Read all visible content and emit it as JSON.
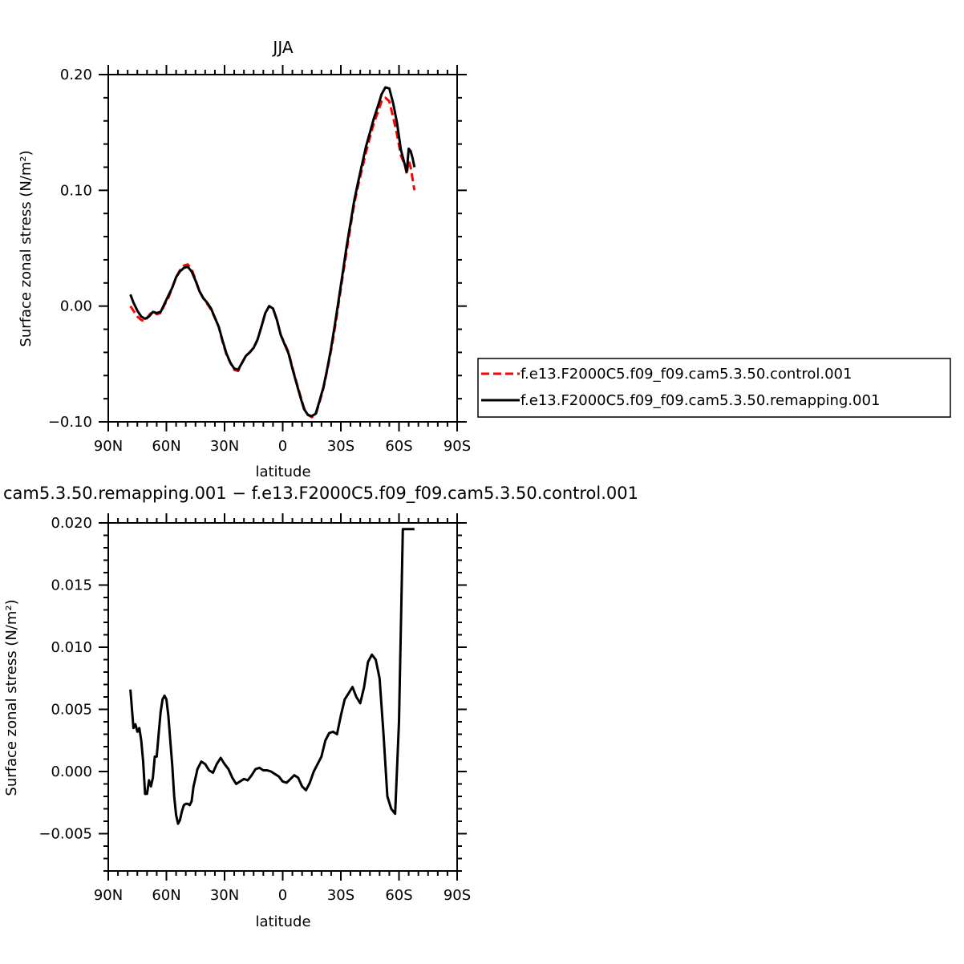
{
  "chart_data": [
    {
      "type": "line",
      "title": "JJA",
      "xlabel": "latitude",
      "ylabel": "Surface zonal stress (N/m²)",
      "xlim": [
        90,
        -90
      ],
      "ylim": [
        -0.1,
        0.2
      ],
      "xticks": [
        {
          "value": 90,
          "label": "90N"
        },
        {
          "value": 60,
          "label": "60N"
        },
        {
          "value": 30,
          "label": "30N"
        },
        {
          "value": 0,
          "label": "0"
        },
        {
          "value": -30,
          "label": "30S"
        },
        {
          "value": -60,
          "label": "60S"
        },
        {
          "value": -90,
          "label": "90S"
        }
      ],
      "yticks": [
        {
          "value": 0.2,
          "label": "0.20"
        },
        {
          "value": 0.1,
          "label": "0.10"
        },
        {
          "value": 0.0,
          "label": "0.00"
        },
        {
          "value": -0.1,
          "label": "−0.10"
        }
      ],
      "legend_position": "right",
      "series": [
        {
          "name": "f.e13.F2000C5.f09_f09.cam5.3.50.control.001",
          "color": "#ff0000",
          "dash": "dashed",
          "x": [
            78.6,
            77,
            75,
            73,
            71,
            69,
            67,
            65,
            63,
            61,
            59,
            57,
            55,
            53,
            51,
            49,
            47,
            45,
            43,
            41,
            39,
            37,
            35,
            33,
            31,
            29,
            27,
            25,
            23,
            21,
            19,
            17,
            15,
            13,
            11,
            9,
            7,
            5,
            3,
            1,
            -1,
            -3,
            -5,
            -7,
            -9,
            -11,
            -13,
            -15,
            -17,
            -19,
            -21,
            -23,
            -25,
            -27,
            -29,
            -31,
            -33,
            -35,
            -37,
            -39,
            -41,
            -43,
            -45,
            -47,
            -49,
            -51,
            -53,
            -55,
            -57,
            -59,
            -61,
            -63,
            -64,
            -65,
            -66,
            -67,
            -68
          ],
          "y": [
            0.0,
            -0.004,
            -0.009,
            -0.012,
            -0.013,
            -0.008,
            -0.004,
            -0.007,
            -0.006,
            0.001,
            0.007,
            0.016,
            0.025,
            0.031,
            0.035,
            0.036,
            0.032,
            0.023,
            0.013,
            0.007,
            0.002,
            -0.003,
            -0.01,
            -0.018,
            -0.031,
            -0.042,
            -0.049,
            -0.055,
            -0.056,
            -0.049,
            -0.043,
            -0.04,
            -0.036,
            -0.029,
            -0.018,
            -0.006,
            0.0,
            -0.002,
            -0.012,
            -0.025,
            -0.032,
            -0.04,
            -0.053,
            -0.065,
            -0.077,
            -0.088,
            -0.094,
            -0.096,
            -0.094,
            -0.083,
            -0.071,
            -0.055,
            -0.038,
            -0.018,
            0.004,
            0.026,
            0.048,
            0.069,
            0.089,
            0.105,
            0.119,
            0.133,
            0.146,
            0.158,
            0.167,
            0.177,
            0.18,
            0.177,
            0.163,
            0.148,
            0.13,
            0.122,
            0.114,
            0.126,
            0.12,
            0.11,
            0.1
          ]
        },
        {
          "name": "f.e13.F2000C5.f09_f09.cam5.3.50.remapping.001",
          "color": "#000000",
          "dash": "solid",
          "x": [
            78.6,
            77,
            75,
            73,
            71,
            69,
            67,
            65,
            63,
            61,
            59,
            57,
            55,
            53,
            51,
            49,
            47,
            45,
            43,
            41,
            39,
            37,
            35,
            33,
            31,
            29,
            27,
            25,
            23,
            21,
            19,
            17,
            15,
            13,
            11,
            9,
            7,
            5,
            3,
            1,
            -1,
            -3,
            -5,
            -7,
            -9,
            -11,
            -13,
            -15,
            -17,
            -19,
            -21,
            -23,
            -25,
            -27,
            -29,
            -31,
            -33,
            -35,
            -37,
            -39,
            -41,
            -43,
            -45,
            -47,
            -49,
            -51,
            -53,
            -55,
            -57,
            -59,
            -61,
            -63,
            -64,
            -65,
            -66,
            -67,
            -68
          ],
          "y": [
            0.01,
            0.003,
            -0.004,
            -0.009,
            -0.011,
            -0.009,
            -0.005,
            -0.006,
            -0.005,
            0.002,
            0.009,
            0.016,
            0.025,
            0.03,
            0.033,
            0.034,
            0.03,
            0.022,
            0.013,
            0.007,
            0.003,
            -0.002,
            -0.01,
            -0.018,
            -0.03,
            -0.041,
            -0.049,
            -0.054,
            -0.055,
            -0.049,
            -0.043,
            -0.04,
            -0.036,
            -0.029,
            -0.018,
            -0.006,
            0.0,
            -0.002,
            -0.012,
            -0.025,
            -0.033,
            -0.041,
            -0.054,
            -0.066,
            -0.078,
            -0.089,
            -0.094,
            -0.095,
            -0.093,
            -0.082,
            -0.07,
            -0.054,
            -0.036,
            -0.015,
            0.007,
            0.029,
            0.052,
            0.072,
            0.092,
            0.108,
            0.123,
            0.138,
            0.15,
            0.162,
            0.172,
            0.183,
            0.189,
            0.188,
            0.175,
            0.158,
            0.135,
            0.122,
            0.116,
            0.136,
            0.134,
            0.128,
            0.12
          ]
        }
      ]
    },
    {
      "type": "line",
      "title": "cam5.3.50.remapping.001 − f.e13.F2000C5.f09_f09.cam5.3.50.control.001",
      "xlabel": "latitude",
      "ylabel": "Surface zonal stress (N/m²)",
      "xlim": [
        90,
        -90
      ],
      "ylim": [
        -0.008,
        0.02
      ],
      "xticks": [
        {
          "value": 90,
          "label": "90N"
        },
        {
          "value": 60,
          "label": "60N"
        },
        {
          "value": 30,
          "label": "30N"
        },
        {
          "value": 0,
          "label": "0"
        },
        {
          "value": -30,
          "label": "30S"
        },
        {
          "value": -60,
          "label": "60S"
        },
        {
          "value": -90,
          "label": "90S"
        }
      ],
      "yticks": [
        {
          "value": 0.02,
          "label": "0.020"
        },
        {
          "value": 0.015,
          "label": "0.015"
        },
        {
          "value": 0.01,
          "label": "0.010"
        },
        {
          "value": 0.005,
          "label": "0.005"
        },
        {
          "value": 0.0,
          "label": "0.000"
        },
        {
          "value": -0.005,
          "label": "−0.005"
        }
      ],
      "series": [
        {
          "color": "#000000",
          "dash": "solid",
          "x": [
            78.6,
            77,
            76,
            75,
            74,
            73,
            72,
            71,
            70,
            69,
            68,
            67,
            66,
            65,
            64,
            63,
            62,
            61,
            60,
            59,
            58,
            57,
            56,
            55,
            54,
            53,
            52,
            51,
            50,
            49,
            48,
            47,
            46,
            45,
            44,
            43,
            42,
            40,
            38,
            36,
            34,
            32,
            30,
            28,
            26,
            24,
            22,
            20,
            18,
            16,
            14,
            12,
            10,
            8,
            6,
            4,
            2,
            0,
            -2,
            -4,
            -6,
            -8,
            -10,
            -12,
            -14,
            -16,
            -18,
            -20,
            -22,
            -24,
            -26,
            -28,
            -30,
            -32,
            -34,
            -36,
            -38,
            -40,
            -42,
            -44,
            -46,
            -48,
            -50,
            -52,
            -54,
            -56,
            -58,
            -60,
            -62,
            -63,
            -64,
            -65,
            -66,
            -67,
            -68
          ],
          "y": [
            0.0066,
            0.0035,
            0.0038,
            0.0032,
            0.0035,
            0.0025,
            0.0008,
            -0.0018,
            -0.0018,
            -0.0007,
            -0.0012,
            -0.0005,
            0.0012,
            0.0012,
            0.003,
            0.0048,
            0.0058,
            0.0061,
            0.0058,
            0.0045,
            0.0025,
            0.0005,
            -0.002,
            -0.0035,
            -0.0042,
            -0.0039,
            -0.0032,
            -0.0027,
            -0.0026,
            -0.0026,
            -0.0027,
            -0.0024,
            -0.0012,
            -0.0005,
            0.0002,
            0.0005,
            0.0008,
            0.0006,
            0.0001,
            -0.0001,
            0.0006,
            0.0011,
            0.0006,
            0.0002,
            -0.0005,
            -0.001,
            -0.0008,
            -0.0006,
            -0.0007,
            -0.0003,
            0.0002,
            0.0003,
            0.0001,
            0.0001,
            0.0,
            -0.0002,
            -0.0004,
            -0.0008,
            -0.0009,
            -0.0006,
            -0.0003,
            -0.0005,
            -0.0012,
            -0.0015,
            -0.0009,
            0.0,
            0.0006,
            0.0012,
            0.0025,
            0.0031,
            0.0032,
            0.003,
            0.0045,
            0.0058,
            0.0063,
            0.0068,
            0.006,
            0.0055,
            0.0068,
            0.0088,
            0.0094,
            0.009,
            0.0075,
            0.003,
            -0.002,
            -0.003,
            -0.0034,
            0.004,
            0.0195,
            0.0195,
            0.0195,
            0.0195,
            0.0195,
            0.0195,
            0.0195
          ]
        }
      ]
    }
  ]
}
